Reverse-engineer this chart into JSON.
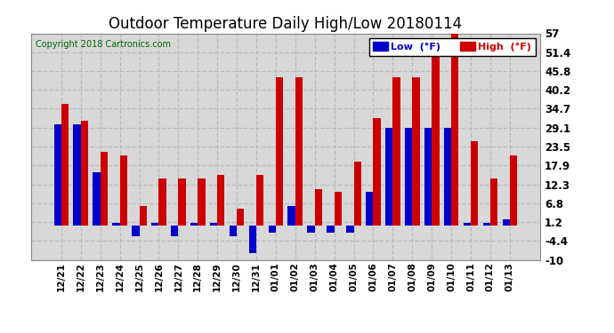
{
  "title": "Outdoor Temperature Daily High/Low 20180114",
  "copyright": "Copyright 2018 Cartronics.com",
  "legend_low": "Low  (°F)",
  "legend_high": "High  (°F)",
  "dates": [
    "12/21",
    "12/22",
    "12/23",
    "12/24",
    "12/25",
    "12/26",
    "12/27",
    "12/28",
    "12/29",
    "12/30",
    "12/31",
    "01/01",
    "01/02",
    "01/03",
    "01/04",
    "01/05",
    "01/06",
    "01/07",
    "01/08",
    "01/09",
    "01/10",
    "01/11",
    "01/12",
    "01/13"
  ],
  "high": [
    36.0,
    31.0,
    22.0,
    21.0,
    6.0,
    14.0,
    14.0,
    14.0,
    15.0,
    5.0,
    15.0,
    44.0,
    44.0,
    11.0,
    10.0,
    19.0,
    32.0,
    44.0,
    44.0,
    53.0,
    57.0,
    25.0,
    14.0,
    21.0
  ],
  "low": [
    30.0,
    30.0,
    16.0,
    1.0,
    -3.0,
    1.0,
    -3.0,
    1.0,
    1.0,
    -3.0,
    -8.0,
    -2.0,
    6.0,
    -2.0,
    -2.0,
    -2.0,
    10.0,
    29.0,
    29.0,
    29.0,
    29.0,
    1.0,
    1.0,
    2.0
  ],
  "ylim": [
    -10.0,
    57.0
  ],
  "yticks": [
    -10.0,
    -4.4,
    1.2,
    6.8,
    12.3,
    17.9,
    23.5,
    29.1,
    34.7,
    40.2,
    45.8,
    51.4,
    57.0
  ],
  "bar_color_low": "#0000cc",
  "bar_color_high": "#cc0000",
  "plot_bg_color": "#d8d8d8",
  "background_color": "#ffffff",
  "grid_color": "#bbbbbb",
  "title_color": "#000000",
  "title_fontsize": 12,
  "bar_width": 0.38,
  "figsize": [
    6.9,
    3.75
  ],
  "dpi": 100
}
